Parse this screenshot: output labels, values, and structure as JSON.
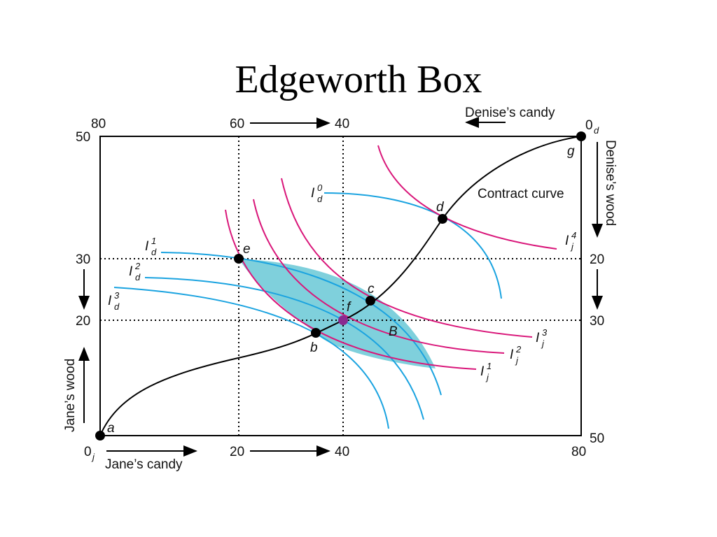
{
  "title": "Edgeworth Box",
  "axes": {
    "jane_candy": "Jane’s candy",
    "jane_wood": "Jane’s wood",
    "denise_candy": "Denise’s candy",
    "denise_wood": "Denise’s wood"
  },
  "origins": {
    "jane": {
      "main": "0",
      "sub": "j"
    },
    "denise": {
      "main": "0",
      "sub": "d"
    }
  },
  "ticks": {
    "bottom": [
      "20",
      "40",
      "80"
    ],
    "top": [
      "80",
      "60",
      "40"
    ],
    "left": [
      "50",
      "30",
      "20"
    ],
    "right": [
      "20",
      "30",
      "50"
    ]
  },
  "points": [
    "a",
    "b",
    "c",
    "d",
    "e",
    "f",
    "g"
  ],
  "curves": [
    {
      "main": "I",
      "sub": "d",
      "sup": "0"
    },
    {
      "main": "I",
      "sub": "d",
      "sup": "1"
    },
    {
      "main": "I",
      "sub": "d",
      "sup": "2"
    },
    {
      "main": "I",
      "sub": "d",
      "sup": "3"
    },
    {
      "main": "I",
      "sub": "j",
      "sup": "4"
    },
    {
      "main": "I",
      "sub": "j",
      "sup": "3"
    },
    {
      "main": "I",
      "sub": "j",
      "sup": "2"
    },
    {
      "main": "I",
      "sub": "j",
      "sup": "1"
    }
  ],
  "contract_curve": "Contract curve",
  "region": "B"
}
